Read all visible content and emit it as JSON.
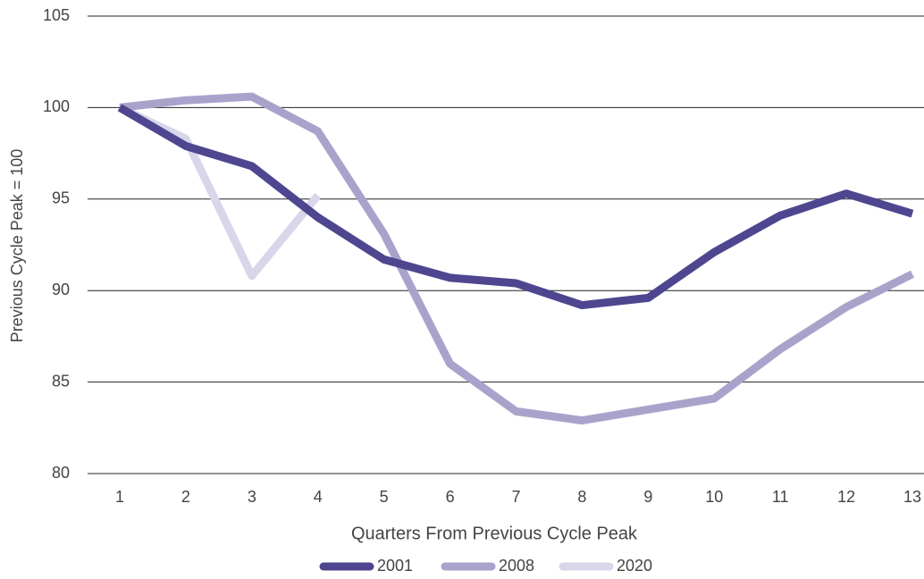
{
  "chart_data": {
    "type": "line",
    "xlabel": "Quarters From Previous Cycle Peak",
    "ylabel": "Previous Cycle Peak = 100",
    "x": [
      1,
      2,
      3,
      4,
      5,
      6,
      7,
      8,
      9,
      10,
      11,
      12,
      13
    ],
    "xlim": [
      1,
      13
    ],
    "xticks": [
      1,
      2,
      3,
      4,
      5,
      6,
      7,
      8,
      9,
      10,
      11,
      12,
      13
    ],
    "ylim": [
      80,
      105
    ],
    "yticks": [
      80,
      85,
      90,
      95,
      100,
      105
    ],
    "grid": true,
    "legend": "bottom",
    "series": [
      {
        "name": "2001",
        "color": "#4f4690",
        "values": [
          100,
          97.9,
          96.8,
          94.0,
          91.7,
          90.7,
          90.4,
          89.2,
          89.6,
          92.1,
          94.1,
          95.3,
          94.2
        ]
      },
      {
        "name": "2008",
        "color": "#a9a3cc",
        "values": [
          100,
          100.4,
          100.6,
          98.7,
          93.1,
          86.0,
          83.4,
          82.9,
          83.5,
          84.1,
          86.8,
          89.1,
          90.9
        ]
      },
      {
        "name": "2020",
        "color": "#d9d6ea",
        "values": [
          100,
          98.3,
          90.8,
          95.2,
          null,
          null,
          null,
          null,
          null,
          null,
          null,
          null,
          null
        ]
      }
    ]
  }
}
